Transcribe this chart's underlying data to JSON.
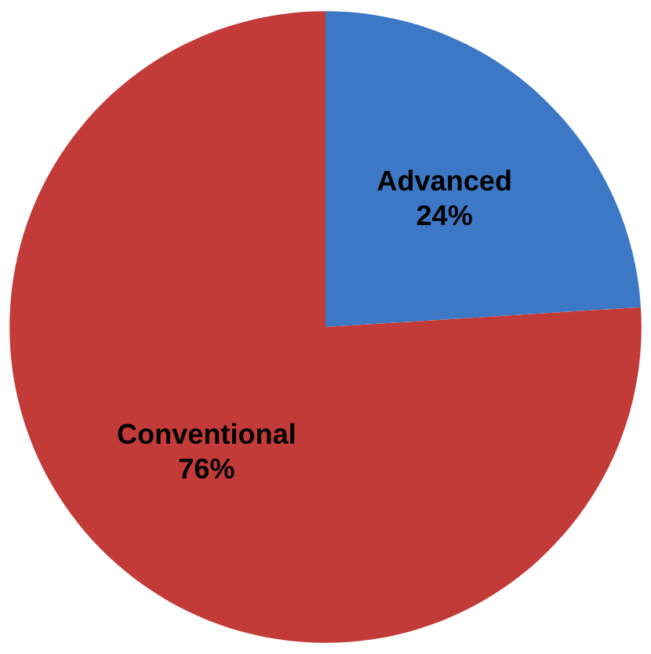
{
  "chart_data": {
    "type": "pie",
    "categories": [
      "Advanced",
      "Conventional"
    ],
    "values": [
      24,
      76
    ],
    "colors": [
      "#3c78c6",
      "#c23b38"
    ],
    "value_labels": [
      "24%",
      "76%"
    ]
  }
}
